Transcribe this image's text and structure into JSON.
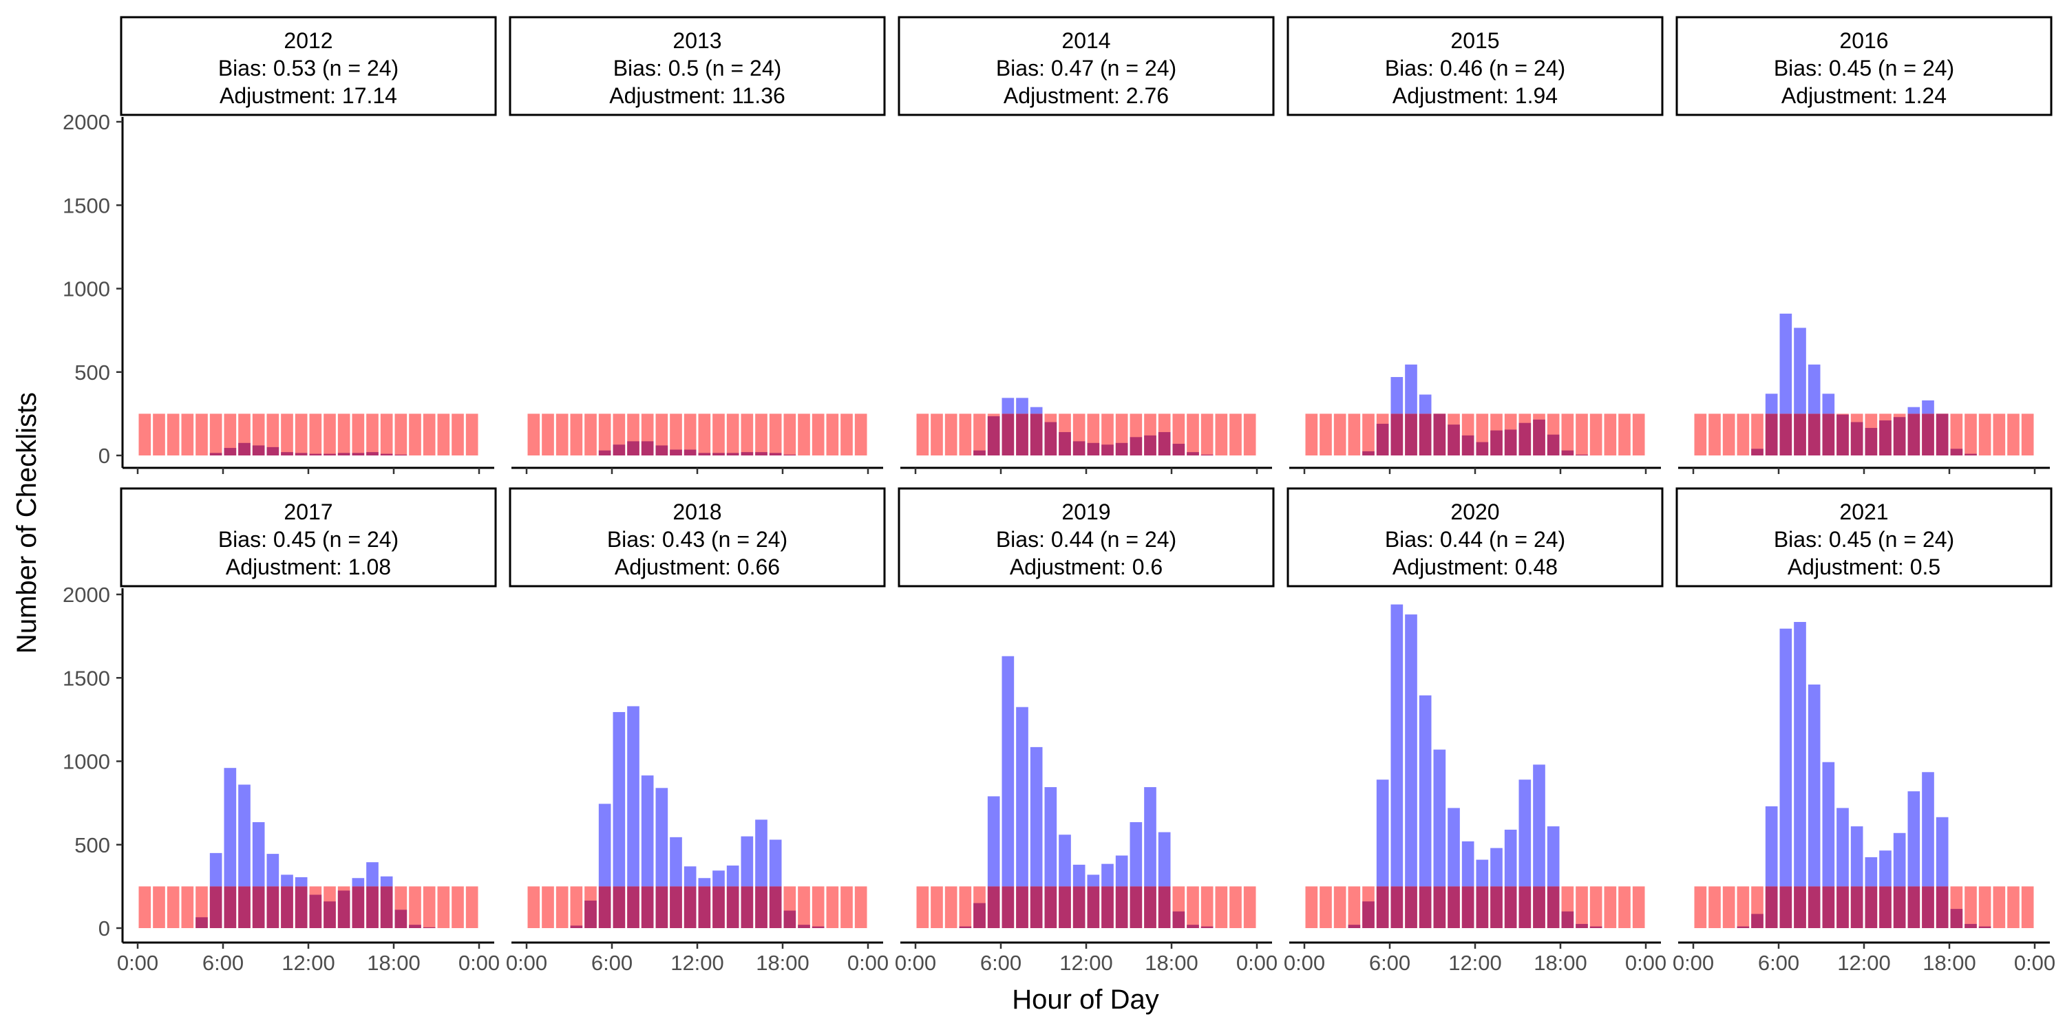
{
  "chart_data": {
    "type": "bar",
    "xlabel": "Hour of Day",
    "ylabel": "Number of Checklists",
    "ylim": [
      0,
      2000
    ],
    "yticks": [
      0,
      500,
      1000,
      1500,
      2000
    ],
    "xticks": [
      0,
      6,
      12,
      18,
      24
    ],
    "xtick_labels": [
      "0:00",
      "6:00",
      "12:00",
      "18:00",
      "0:00"
    ],
    "hours": [
      0,
      1,
      2,
      3,
      4,
      5,
      6,
      7,
      8,
      9,
      10,
      11,
      12,
      13,
      14,
      15,
      16,
      17,
      18,
      19,
      20,
      21,
      22,
      23
    ],
    "colors": {
      "observed": "#8080ff",
      "uniform": "#ff6b6b",
      "overlap": "#b3306b"
    },
    "series_kinds": [
      "observed",
      "uniform"
    ],
    "grid": false,
    "panels": [
      {
        "year": "2012",
        "bias_text": "Bias: 0.53 (n = 24)",
        "adjustment_text": "Adjustment: 17.14",
        "uniform": 250,
        "observed": [
          0,
          0,
          0,
          0,
          0,
          15,
          45,
          75,
          60,
          50,
          20,
          15,
          10,
          10,
          15,
          15,
          20,
          10,
          5,
          0,
          0,
          0,
          0,
          0
        ]
      },
      {
        "year": "2013",
        "bias_text": "Bias: 0.5 (n = 24)",
        "adjustment_text": "Adjustment: 11.36",
        "uniform": 250,
        "observed": [
          0,
          0,
          0,
          0,
          0,
          30,
          65,
          85,
          85,
          60,
          35,
          35,
          15,
          15,
          15,
          20,
          20,
          15,
          5,
          0,
          0,
          0,
          0,
          0
        ]
      },
      {
        "year": "2014",
        "bias_text": "Bias: 0.47 (n = 24)",
        "adjustment_text": "Adjustment: 2.76",
        "uniform": 250,
        "observed": [
          0,
          0,
          0,
          0,
          30,
          235,
          345,
          345,
          290,
          200,
          140,
          85,
          75,
          65,
          75,
          110,
          120,
          140,
          70,
          20,
          5,
          0,
          0,
          0
        ]
      },
      {
        "year": "2015",
        "bias_text": "Bias: 0.46 (n = 24)",
        "adjustment_text": "Adjustment: 1.94",
        "uniform": 250,
        "observed": [
          0,
          0,
          0,
          0,
          25,
          190,
          470,
          545,
          365,
          250,
          185,
          120,
          80,
          150,
          155,
          195,
          215,
          125,
          30,
          5,
          0,
          0,
          0,
          0
        ]
      },
      {
        "year": "2016",
        "bias_text": "Bias: 0.45 (n = 24)",
        "adjustment_text": "Adjustment: 1.24",
        "uniform": 250,
        "observed": [
          0,
          0,
          0,
          0,
          40,
          370,
          850,
          765,
          545,
          370,
          245,
          200,
          165,
          210,
          230,
          290,
          330,
          250,
          40,
          10,
          0,
          0,
          0,
          0
        ]
      },
      {
        "year": "2017",
        "bias_text": "Bias: 0.45 (n = 24)",
        "adjustment_text": "Adjustment: 1.08",
        "uniform": 250,
        "observed": [
          0,
          0,
          0,
          0,
          65,
          450,
          960,
          860,
          635,
          445,
          320,
          305,
          200,
          160,
          225,
          300,
          395,
          310,
          110,
          20,
          5,
          0,
          0,
          0
        ]
      },
      {
        "year": "2018",
        "bias_text": "Bias: 0.43 (n = 24)",
        "adjustment_text": "Adjustment: 0.66",
        "uniform": 250,
        "observed": [
          0,
          0,
          0,
          15,
          165,
          745,
          1295,
          1330,
          915,
          840,
          545,
          370,
          300,
          345,
          375,
          550,
          650,
          530,
          105,
          20,
          10,
          0,
          0,
          0
        ]
      },
      {
        "year": "2019",
        "bias_text": "Bias: 0.44 (n = 24)",
        "adjustment_text": "Adjustment: 0.6",
        "uniform": 250,
        "observed": [
          0,
          0,
          0,
          10,
          150,
          790,
          1630,
          1325,
          1085,
          845,
          560,
          380,
          320,
          385,
          435,
          635,
          845,
          575,
          100,
          20,
          10,
          0,
          0,
          0
        ]
      },
      {
        "year": "2020",
        "bias_text": "Bias: 0.44 (n = 24)",
        "adjustment_text": "Adjustment: 0.48",
        "uniform": 250,
        "observed": [
          0,
          0,
          0,
          20,
          160,
          890,
          1940,
          1880,
          1395,
          1070,
          720,
          520,
          410,
          480,
          590,
          890,
          980,
          610,
          100,
          25,
          10,
          0,
          0,
          0
        ]
      },
      {
        "year": "2021",
        "bias_text": "Bias: 0.45 (n = 24)",
        "adjustment_text": "Adjustment: 0.5",
        "uniform": 250,
        "observed": [
          0,
          0,
          0,
          10,
          85,
          730,
          1795,
          1835,
          1460,
          995,
          720,
          610,
          425,
          465,
          570,
          820,
          935,
          665,
          115,
          25,
          10,
          0,
          0,
          0
        ]
      }
    ]
  }
}
